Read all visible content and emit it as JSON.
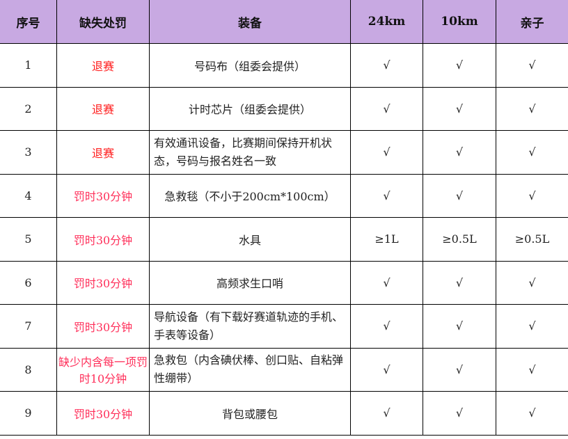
{
  "header": [
    "序号",
    "缺失处罚",
    "装备",
    "24km",
    "10km",
    "亲子"
  ],
  "colors": {
    "header_bg": "#c8a9e2",
    "penalty_quit": "#ff1a1a",
    "penalty_time": "#ff2f5a"
  },
  "rows": [
    {
      "no": "1",
      "penalty": "退赛",
      "type": "quit",
      "item": "号码布（组委会提供）",
      "c24": "√",
      "c10": "√",
      "kid": "√"
    },
    {
      "no": "2",
      "penalty": "退赛",
      "type": "quit",
      "item": "计时芯片（组委会提供）",
      "c24": "√",
      "c10": "√",
      "kid": "√"
    },
    {
      "no": "3",
      "penalty": "退赛",
      "type": "quit",
      "item": "有效通讯设备，比赛期间保持开机状态，号码与报名姓名一致",
      "c24": "√",
      "c10": "√",
      "kid": "√",
      "multiline": true
    },
    {
      "no": "4",
      "penalty": "罚时30分钟",
      "type": "time",
      "item": "急救毯（不小于200cm*100cm）",
      "c24": "√",
      "c10": "√",
      "kid": "√"
    },
    {
      "no": "5",
      "penalty": "罚时30分钟",
      "type": "time",
      "item": "水具",
      "c24": "≥1L",
      "c10": "≥0.5L",
      "kid": "≥0.5L"
    },
    {
      "no": "6",
      "penalty": "罚时30分钟",
      "type": "time",
      "item": "高频求生口哨",
      "c24": "√",
      "c10": "√",
      "kid": "√"
    },
    {
      "no": "7",
      "penalty": "罚时30分钟",
      "type": "time",
      "item": "导航设备（有下载好赛道轨迹的手机、手表等设备）",
      "c24": "√",
      "c10": "√",
      "kid": "√",
      "multiline": true
    },
    {
      "no": "8",
      "penalty": "缺少内含每一项罚时10分钟",
      "type": "time",
      "item": "急救包（内含碘伏棒、创口贴、自粘弹性绷带）",
      "c24": "√",
      "c10": "√",
      "kid": "√",
      "multiline": true
    },
    {
      "no": "9",
      "penalty": "罚时30分钟",
      "type": "time",
      "item": "背包或腰包",
      "c24": "√",
      "c10": "√",
      "kid": "√"
    }
  ]
}
